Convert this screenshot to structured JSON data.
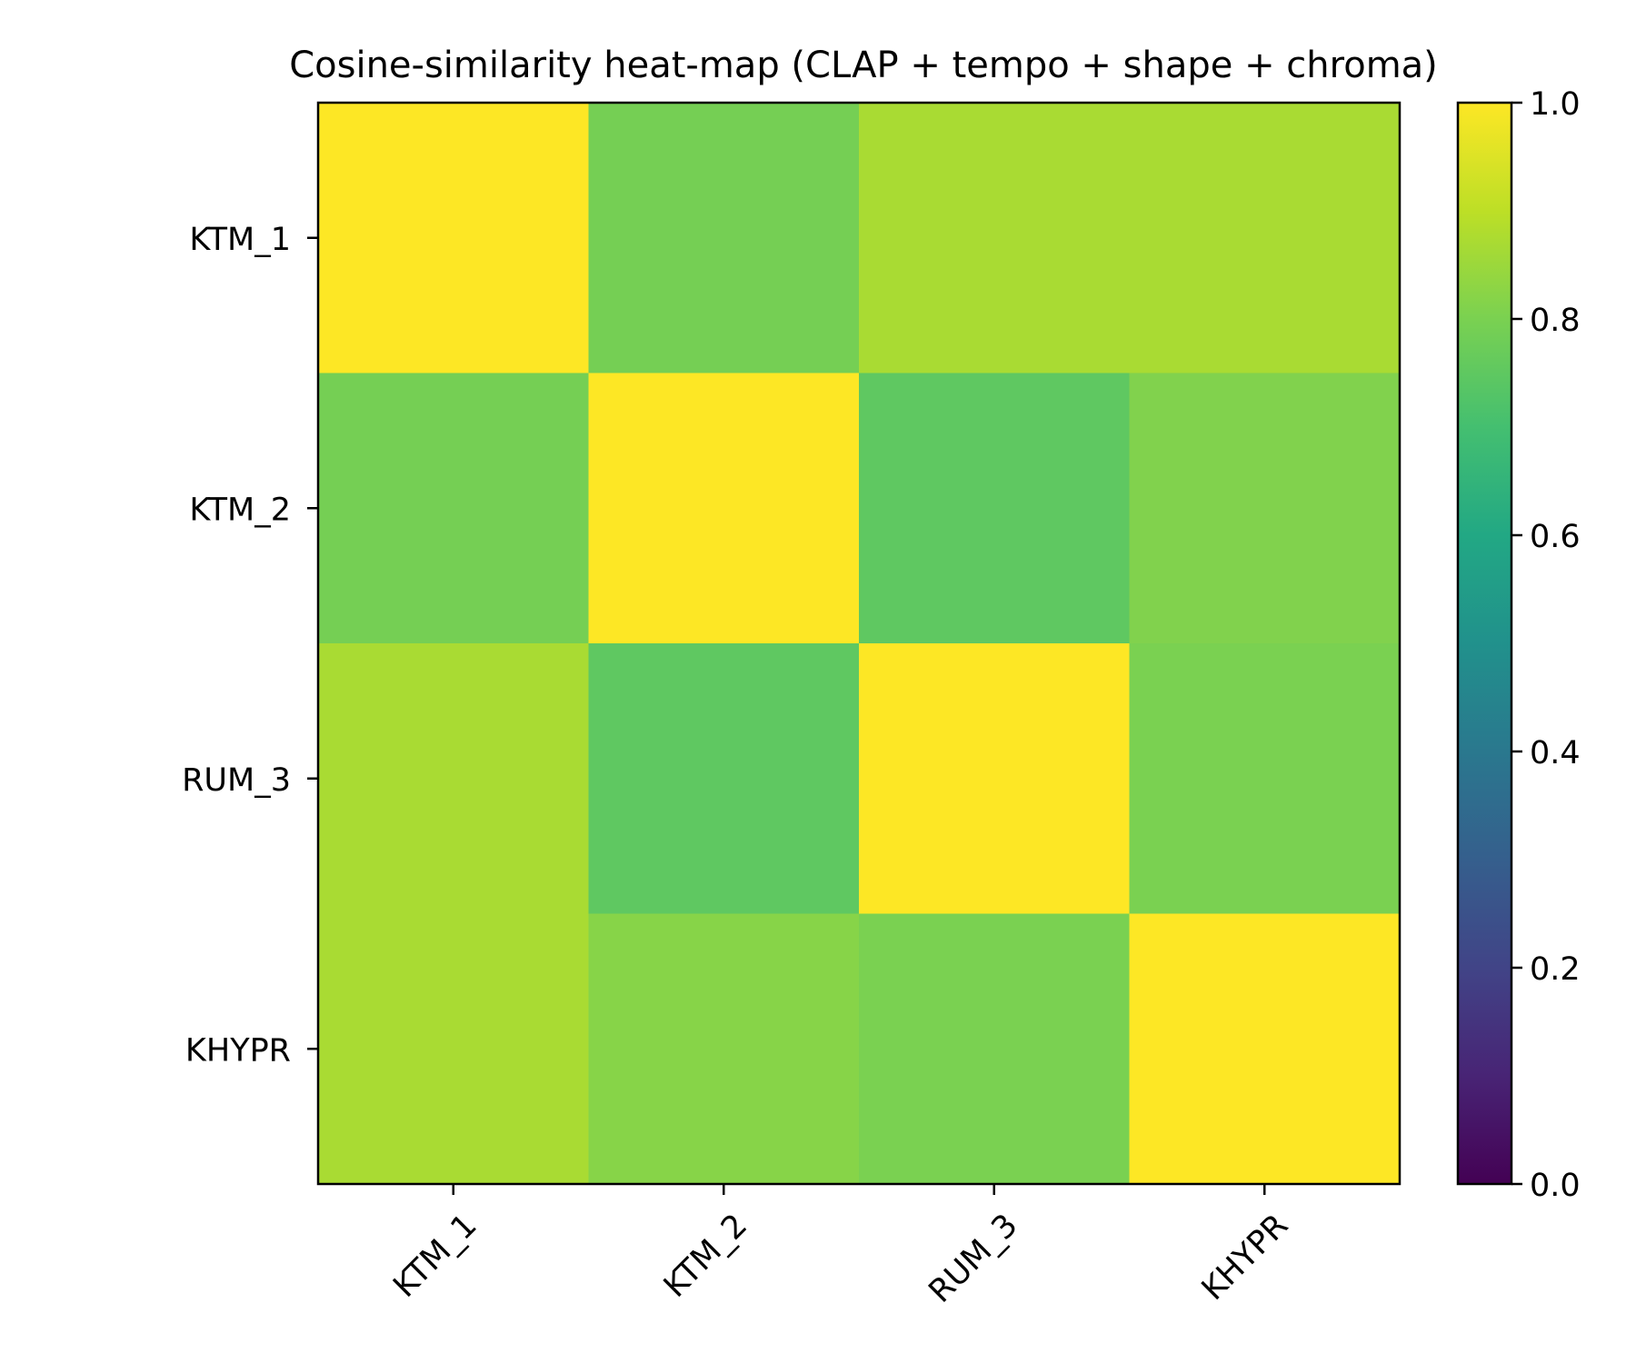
{
  "chart_data": {
    "type": "heatmap",
    "title": "Cosine-similarity heat-map (CLAP + tempo + shape + chroma)",
    "xlabel": "",
    "ylabel": "",
    "row_labels": [
      "KTM_1",
      "KTM_2",
      "RUM_3",
      "KHYPR"
    ],
    "col_labels": [
      "KTM_1",
      "KTM_2",
      "RUM_3",
      "KHYPR"
    ],
    "values": [
      [
        1.0,
        0.79,
        0.87,
        0.87
      ],
      [
        0.79,
        1.0,
        0.75,
        0.81
      ],
      [
        0.87,
        0.75,
        1.0,
        0.8
      ],
      [
        0.87,
        0.82,
        0.8,
        1.0
      ]
    ],
    "colormap": "viridis",
    "vmin": 0.0,
    "vmax": 1.0,
    "colorbar": {
      "position": "right",
      "ticks": [
        0.0,
        0.2,
        0.4,
        0.6,
        0.8,
        1.0
      ],
      "tick_labels": [
        "0.0",
        "0.2",
        "0.4",
        "0.6",
        "0.8",
        "1.0"
      ]
    },
    "x_tick_rotation_deg": 45,
    "grid": false
  }
}
